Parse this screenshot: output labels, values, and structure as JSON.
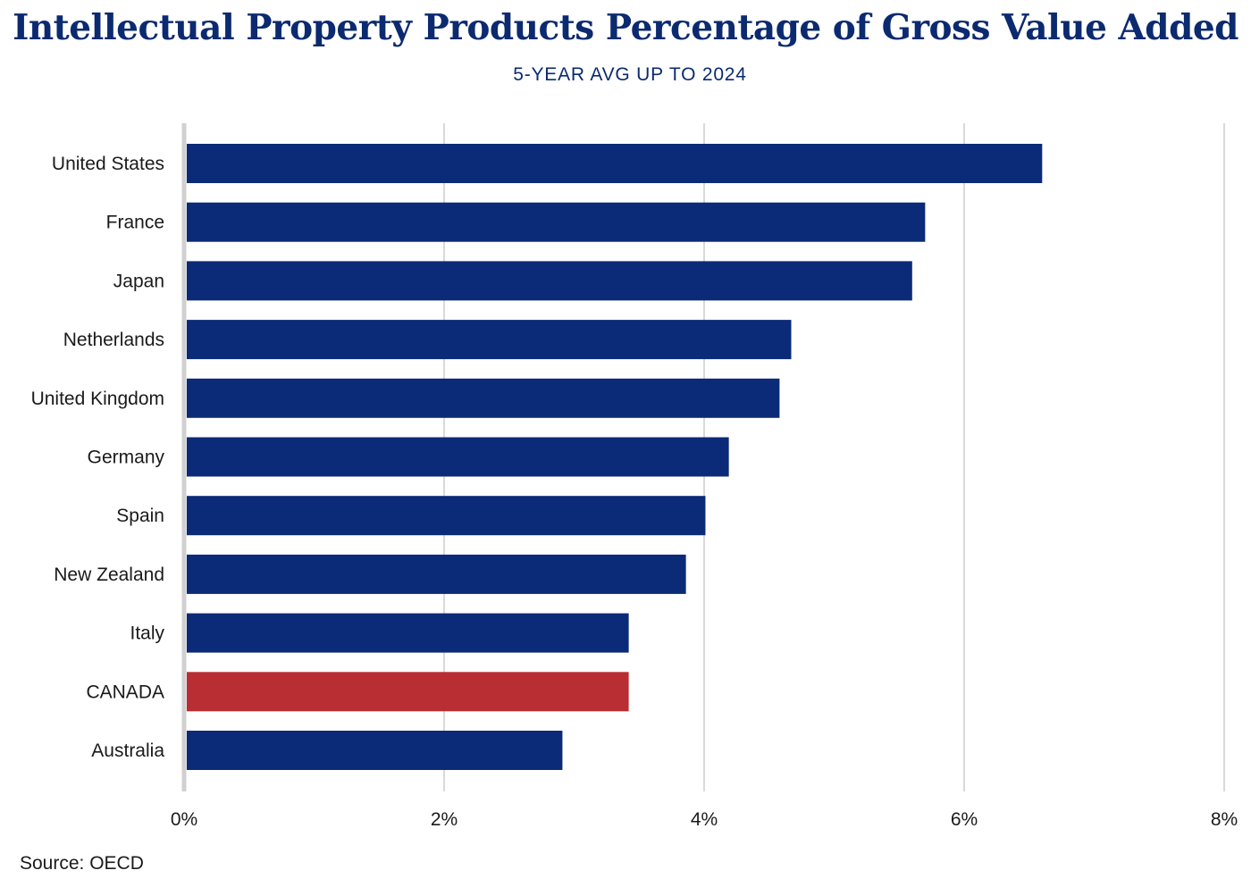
{
  "chart_data": {
    "type": "bar",
    "orientation": "horizontal",
    "title": "Intellectual Property Products Percentage of Gross Value Added",
    "subtitle": "5-YEAR AVG UP TO 2024",
    "categories": [
      "United States",
      "France",
      "Japan",
      "Netherlands",
      "United Kingdom",
      "Germany",
      "Spain",
      "New Zealand",
      "Italy",
      "CANADA",
      "Australia"
    ],
    "values": [
      6.6,
      5.7,
      5.6,
      4.67,
      4.58,
      4.19,
      4.01,
      3.86,
      3.42,
      3.42,
      2.91
    ],
    "highlight": "CANADA",
    "xlim": [
      0,
      8
    ],
    "xticks": [
      "0%",
      "2%",
      "4%",
      "6%",
      "8%"
    ],
    "grid": true,
    "colors": {
      "bar": "#0b2a78",
      "highlight": "#b92e33",
      "grid": "#d9d9d9",
      "axis": "#d0d0d0"
    },
    "source": "Source: OECD"
  }
}
